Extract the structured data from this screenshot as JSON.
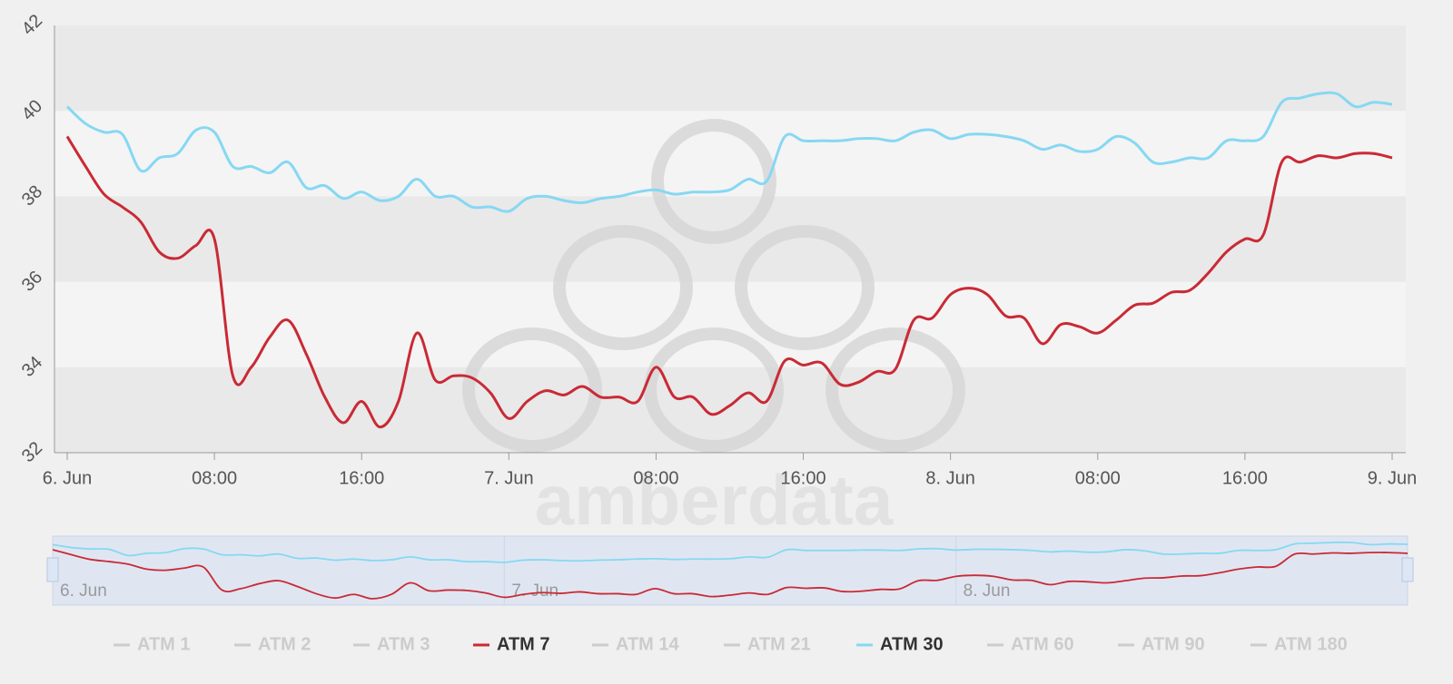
{
  "chart_data": {
    "type": "line",
    "watermark": "amberdata",
    "x": [
      0,
      1,
      2,
      3,
      4,
      5,
      6,
      7,
      8,
      9,
      10,
      11,
      12,
      13,
      14,
      15,
      16,
      17,
      18,
      19,
      20,
      21,
      22,
      23,
      24,
      25,
      26,
      27,
      28,
      29,
      30,
      31,
      32,
      33,
      34,
      35,
      36,
      37,
      38,
      39,
      40,
      41,
      42,
      43,
      44,
      45,
      46,
      47,
      48,
      49,
      50,
      51,
      52,
      53,
      54,
      55,
      56,
      57,
      58,
      59,
      60,
      61,
      62,
      63,
      64,
      65,
      66,
      67,
      68,
      69,
      70,
      71,
      72
    ],
    "xlim": [
      0,
      72
    ],
    "xticks": [
      {
        "value": 0,
        "label": "6. Jun"
      },
      {
        "value": 8,
        "label": "08:00"
      },
      {
        "value": 16,
        "label": "16:00"
      },
      {
        "value": 24,
        "label": "7. Jun"
      },
      {
        "value": 32,
        "label": "08:00"
      },
      {
        "value": 40,
        "label": "16:00"
      },
      {
        "value": 48,
        "label": "8. Jun"
      },
      {
        "value": 56,
        "label": "08:00"
      },
      {
        "value": 64,
        "label": "16:00"
      },
      {
        "value": 72,
        "label": "9. Jun"
      }
    ],
    "ylim": [
      32,
      42
    ],
    "yticks": [
      32,
      34,
      36,
      38,
      40,
      42
    ],
    "series": [
      {
        "name": "ATM 1",
        "visible": false
      },
      {
        "name": "ATM 2",
        "visible": false
      },
      {
        "name": "ATM 3",
        "visible": false
      },
      {
        "name": "ATM 7",
        "color": "#c92a35",
        "visible": true,
        "values": [
          39.4,
          38.7,
          38.05,
          37.75,
          37.4,
          36.7,
          36.55,
          36.85,
          37.0,
          33.8,
          34.0,
          34.7,
          35.1,
          34.3,
          33.3,
          32.7,
          33.2,
          32.6,
          33.2,
          34.8,
          33.7,
          33.8,
          33.75,
          33.4,
          32.8,
          33.2,
          33.45,
          33.35,
          33.55,
          33.3,
          33.3,
          33.2,
          34.0,
          33.3,
          33.3,
          32.9,
          33.1,
          33.4,
          33.2,
          34.15,
          34.05,
          34.1,
          33.6,
          33.65,
          33.9,
          33.95,
          35.1,
          35.15,
          35.7,
          35.85,
          35.7,
          35.2,
          35.15,
          34.55,
          35.0,
          34.95,
          34.8,
          35.1,
          35.45,
          35.5,
          35.75,
          35.8,
          36.2,
          36.7,
          37.0,
          37.1,
          38.8,
          38.8,
          38.95,
          38.9,
          39.0,
          39.0,
          38.9
        ]
      },
      {
        "name": "ATM 14",
        "visible": false
      },
      {
        "name": "ATM 21",
        "visible": false
      },
      {
        "name": "ATM 30",
        "color": "#86d8f3",
        "visible": true,
        "values": [
          40.1,
          39.7,
          39.5,
          39.45,
          38.6,
          38.9,
          39.0,
          39.55,
          39.5,
          38.7,
          38.7,
          38.55,
          38.8,
          38.2,
          38.25,
          37.95,
          38.1,
          37.9,
          38.0,
          38.4,
          38.0,
          38.0,
          37.75,
          37.75,
          37.65,
          37.95,
          38.0,
          37.9,
          37.85,
          37.95,
          38.0,
          38.1,
          38.15,
          38.05,
          38.1,
          38.1,
          38.15,
          38.4,
          38.35,
          39.4,
          39.3,
          39.3,
          39.3,
          39.35,
          39.35,
          39.3,
          39.5,
          39.55,
          39.35,
          39.45,
          39.45,
          39.4,
          39.3,
          39.1,
          39.2,
          39.05,
          39.1,
          39.4,
          39.25,
          38.8,
          38.8,
          38.9,
          38.9,
          39.3,
          39.3,
          39.4,
          40.2,
          40.3,
          40.4,
          40.4,
          40.1,
          40.2,
          40.15
        ]
      },
      {
        "name": "ATM 60",
        "visible": false
      },
      {
        "name": "ATM 90",
        "visible": false
      },
      {
        "name": "ATM 180",
        "visible": false
      }
    ]
  }
}
